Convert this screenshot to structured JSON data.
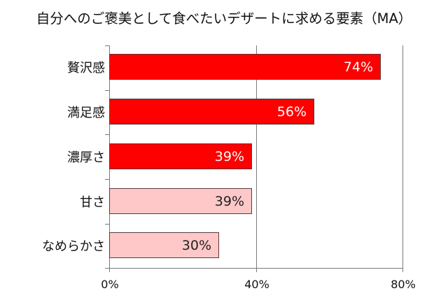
{
  "chart_data": {
    "type": "bar",
    "orientation": "horizontal",
    "title": "自分へのご褒美として食べたいデザートに求める要素（MA）",
    "categories": [
      "贅沢感",
      "満足感",
      "濃厚さ",
      "甘さ",
      "なめらかさ"
    ],
    "values": [
      74,
      56,
      39,
      39,
      30
    ],
    "value_labels": [
      "74%",
      "56%",
      "39%",
      "39%",
      "30%"
    ],
    "bar_colors": [
      "#FF0000",
      "#FF0000",
      "#FF0000",
      "#FFC8C8",
      "#FFC8C8"
    ],
    "label_colors": [
      "#FFFFFF",
      "#FFFFFF",
      "#FFFFFF",
      "#222222",
      "#222222"
    ],
    "xlabel": "",
    "ylabel": "",
    "xlim": [
      0,
      80
    ],
    "x_ticks": [
      "0%",
      "40%",
      "80%"
    ],
    "grid": "vertical gridlines at 40% and 80%",
    "legend": "none"
  },
  "title": "自分へのご褒美として食べたいデザートに求める要素（MA）",
  "bars": [
    {
      "category": "贅沢感",
      "label": "74%"
    },
    {
      "category": "満足感",
      "label": "56%"
    },
    {
      "category": "濃厚さ",
      "label": "39%"
    },
    {
      "category": "甘さ",
      "label": "39%"
    },
    {
      "category": "なめらかさ",
      "label": "30%"
    }
  ],
  "axis": {
    "x_ticks": [
      "0%",
      "40%",
      "80%"
    ]
  }
}
